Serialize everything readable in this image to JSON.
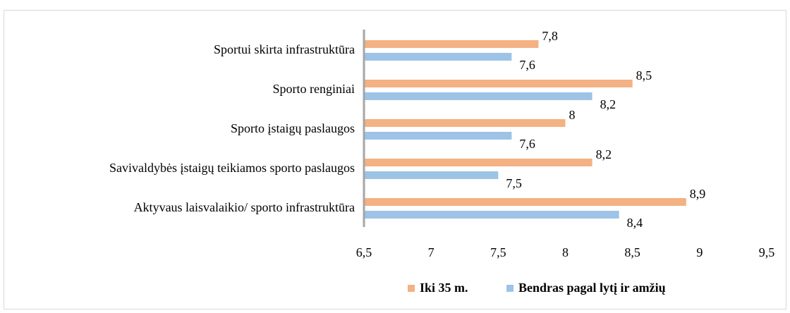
{
  "chart_data": {
    "type": "bar",
    "orientation": "horizontal",
    "categories": [
      "Sportui skirta infrastruktūra",
      "Sporto renginiai",
      "Sporto įstaigų paslaugos",
      "Savivaldybės įstaigų teikiamos sporto paslaugos",
      "Aktyvaus laisvalaikio/ sporto infrastruktūra"
    ],
    "series": [
      {
        "name": "Iki 35 m.",
        "color": "#f4b183",
        "values": [
          7.8,
          8.5,
          8,
          8.2,
          8.9
        ],
        "value_labels": [
          "7,8",
          "8,5",
          "8",
          "8,2",
          "8,9"
        ]
      },
      {
        "name": "Bendras pagal lytį ir amžių",
        "color": "#9dc3e6",
        "values": [
          7.6,
          8.2,
          7.6,
          7.5,
          8.4
        ],
        "value_labels": [
          "7,6",
          "8,2",
          "7,6",
          "7,5",
          "8,4"
        ]
      }
    ],
    "xlim": [
      6.5,
      9.5
    ],
    "xticks": [
      {
        "value": 6.5,
        "label": "6,5"
      },
      7,
      {
        "value": 7.5,
        "label": "7,5"
      },
      8,
      {
        "value": 8.5,
        "label": "8,5"
      },
      9,
      {
        "value": 9.5,
        "label": "9,5"
      }
    ],
    "grid": false,
    "legend": "bottom"
  }
}
